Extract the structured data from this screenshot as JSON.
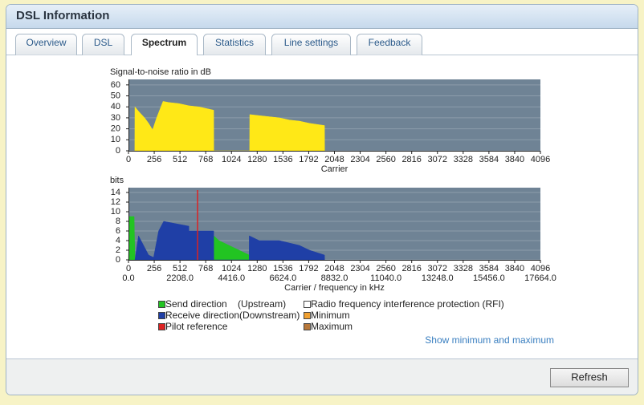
{
  "header": {
    "title": "DSL Information"
  },
  "tabs": [
    "Overview",
    "DSL",
    "Spectrum",
    "Statistics",
    "Line settings",
    "Feedback"
  ],
  "active_tab": 2,
  "chart_data": [
    {
      "type": "area",
      "ylabel": "Signal-to-noise ratio in dB",
      "xlabel": "Carrier",
      "color": "#ffe817",
      "x": [
        63,
        64,
        100,
        160,
        200,
        240,
        280,
        344,
        400,
        500,
        600,
        700,
        847,
        848,
        1205,
        1206,
        1300,
        1400,
        1500,
        1600,
        1700,
        1800,
        1949,
        1950
      ],
      "values": [
        0,
        40,
        36,
        30,
        25,
        19,
        30,
        45,
        44,
        43,
        41,
        40,
        37,
        0,
        0,
        33,
        32,
        31,
        30,
        28,
        27,
        25,
        23,
        0
      ],
      "xlim": [
        0,
        4096
      ],
      "xticks": [
        0,
        256,
        512,
        768,
        1024,
        1280,
        1536,
        1792,
        2048,
        2304,
        2560,
        2816,
        3072,
        3328,
        3584,
        3840,
        4096
      ],
      "ylim": [
        0,
        65
      ],
      "yticks": [
        0,
        10,
        20,
        30,
        40,
        50,
        60
      ],
      "grid": true
    },
    {
      "type": "area",
      "ylabel": "bits",
      "xlabel": "Carrier / frequency in kHz",
      "series": [
        {
          "color": "#22c422",
          "x": [
            0,
            8,
            56,
            64,
            847,
            848,
            900,
            1000,
            1100,
            1200,
            1201
          ],
          "values": [
            0,
            9,
            9,
            0,
            0,
            5,
            4,
            3,
            2,
            1,
            0
          ]
        },
        {
          "color": "#1f3fa6",
          "x": [
            64,
            100,
            150,
            200,
            250,
            300,
            350,
            600,
            601,
            847,
            848,
            1200,
            1201,
            1300,
            1400,
            1500,
            1600,
            1700,
            1800,
            1949,
            1950
          ],
          "values": [
            0,
            5,
            3,
            1,
            0.5,
            6,
            8,
            7,
            6,
            6,
            0,
            0,
            5,
            4,
            4,
            4,
            3.5,
            3,
            2,
            1,
            0
          ]
        }
      ],
      "pilot": 687,
      "pilot_color": "#dd2222",
      "xlim": [
        0,
        4096
      ],
      "xticks": [
        0,
        256,
        512,
        768,
        1024,
        1280,
        1536,
        1792,
        2048,
        2304,
        2560,
        2816,
        3072,
        3328,
        3584,
        3840,
        4096
      ],
      "x2lim": [
        0,
        17664
      ],
      "x2ticks": [
        {
          "value": 0,
          "label": "0.0"
        },
        {
          "value": 2208,
          "label": "2208.0"
        },
        {
          "value": 4416,
          "label": "4416.0"
        },
        {
          "value": 6624,
          "label": "6624.0"
        },
        {
          "value": 8832,
          "label": "8832.0"
        },
        {
          "value": 11040,
          "label": "11040.0"
        },
        {
          "value": 13248,
          "label": "13248.0"
        },
        {
          "value": 15456,
          "label": "15456.0"
        },
        {
          "value": 17664,
          "label": "17664.0"
        }
      ],
      "ylim": [
        0,
        15
      ],
      "yticks": [
        0,
        2,
        4,
        6,
        8,
        10,
        12,
        14
      ],
      "grid": true
    }
  ],
  "legend": [
    {
      "label": "Send direction    (Upstream)",
      "color": "#22c422"
    },
    {
      "label": "Radio frequency interference protection (RFI)",
      "color": "#ffffff"
    },
    {
      "label": "Receive direction(Downstream)",
      "color": "#1f3fa6"
    },
    {
      "label": "Minimum",
      "color": "#f0a030"
    },
    {
      "label": "Pilot reference",
      "color": "#dd2222"
    },
    {
      "label": "Maximum",
      "color": "#b8783a"
    }
  ],
  "link": "Show minimum and maximum",
  "button": "Refresh"
}
